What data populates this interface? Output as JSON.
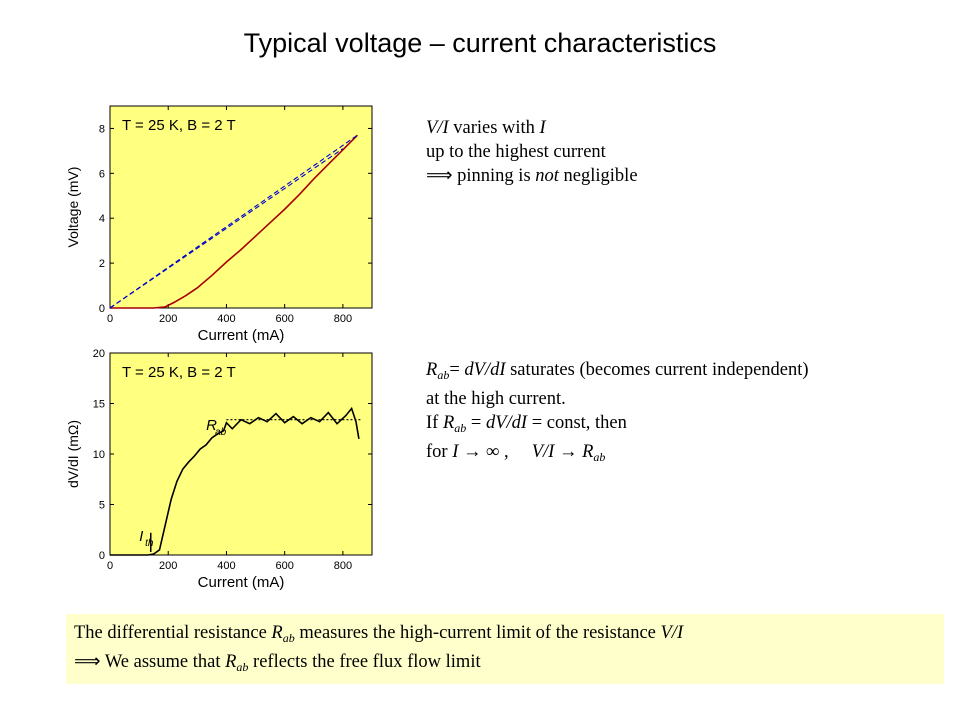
{
  "title": "Typical voltage – current characteristics",
  "note1": {
    "line1_a": "V/I",
    "line1_b": " varies with ",
    "line1_c": "I",
    "line2": "up to the highest current",
    "line3_sym": "⟹",
    "line3_a": " pinning is ",
    "line3_b": "not",
    "line3_c": " negligible"
  },
  "note2": {
    "l1_R": "R",
    "l1_sub": "ab",
    "l1_eq": "= ",
    "l1_expr": "dV/dI",
    "l1_rest": " saturates (becomes current independent)",
    "l2": "at the high current.",
    "l3_if": "If ",
    "l3_R": "R",
    "l3_sub": "ab",
    "l3_eq": " = ",
    "l3_expr": "dV/dI",
    "l3_rest": " = const, then",
    "l4_for": "for ",
    "l4_I": "I",
    "l4_arrow": " → ",
    "l4_inf": "∞",
    "l4_comma": " ,     ",
    "l4_VI": "V/I",
    "l4_arrow2": " → ",
    "l4_R": "R",
    "l4_sub": "ab"
  },
  "bottom": {
    "l1_a": "The differential resistance ",
    "l1_R": "R",
    "l1_sub": "ab",
    "l1_b": " measures the high-current limit of the resistance ",
    "l1_c": "V/I",
    "l2_sym": "⟹",
    "l2_a": " We assume that ",
    "l2_R": "R",
    "l2_sub": "ab",
    "l2_b": " reflects the free flux flow limit"
  },
  "chart_data": [
    {
      "type": "line",
      "annotation": "T = 25 K, B = 2 T",
      "xlabel": "Current (mA)",
      "ylabel": "Voltage (mV)",
      "xlim": [
        0,
        900
      ],
      "ylim": [
        0,
        9
      ],
      "xticks": [
        0,
        200,
        400,
        600,
        800
      ],
      "yticks": [
        0,
        2,
        4,
        6,
        8
      ],
      "background": "#ffff80",
      "series": [
        {
          "style": "solid",
          "color": "#aa0000",
          "x": [
            0,
            150,
            190,
            220,
            260,
            300,
            350,
            400,
            450,
            500,
            550,
            600,
            650,
            700,
            750,
            800,
            850
          ],
          "y": [
            0,
            0,
            0.05,
            0.25,
            0.55,
            0.9,
            1.45,
            2.05,
            2.6,
            3.2,
            3.8,
            4.4,
            5.05,
            5.75,
            6.4,
            7.05,
            7.7
          ]
        },
        {
          "style": "dashed",
          "color": "#0000cc",
          "x": [
            0,
            850
          ],
          "y": [
            0,
            7.7
          ]
        },
        {
          "style": "dashed",
          "color": "#0000cc",
          "x": [
            0,
            800
          ],
          "y": [
            0,
            7.1
          ]
        }
      ]
    },
    {
      "type": "line",
      "annotation": "T = 25 K, B = 2 T",
      "xlabel": "Current (mA)",
      "ylabel": "dV/dI (mΩ)",
      "xlim": [
        0,
        900
      ],
      "ylim": [
        0,
        20
      ],
      "xticks": [
        0,
        200,
        400,
        600,
        800
      ],
      "yticks": [
        0,
        5,
        10,
        15,
        20
      ],
      "background": "#ffff80",
      "labels": {
        "rab": "R",
        "rab_sub": "ab",
        "ith": "I",
        "ith_sub": "th"
      },
      "series": [
        {
          "style": "solid",
          "color": "#000000",
          "x": [
            0,
            130,
            150,
            170,
            190,
            210,
            230,
            250,
            270,
            290,
            310,
            330,
            350,
            370,
            390,
            400,
            420,
            450,
            480,
            510,
            540,
            570,
            600,
            630,
            660,
            690,
            720,
            750,
            780,
            810,
            830,
            845,
            855
          ],
          "y": [
            0,
            0,
            0.1,
            0.5,
            3.0,
            5.5,
            7.3,
            8.5,
            9.2,
            9.8,
            10.5,
            10.9,
            11.6,
            12.0,
            12.3,
            13.1,
            12.5,
            13.4,
            13.0,
            13.6,
            13.2,
            14.0,
            13.1,
            13.7,
            13.0,
            13.6,
            13.2,
            14.1,
            13.0,
            13.8,
            14.5,
            13.2,
            11.5
          ]
        },
        {
          "style": "dotted",
          "color": "#000000",
          "x": [
            400,
            860
          ],
          "y": [
            13.4,
            13.4
          ]
        }
      ]
    }
  ]
}
